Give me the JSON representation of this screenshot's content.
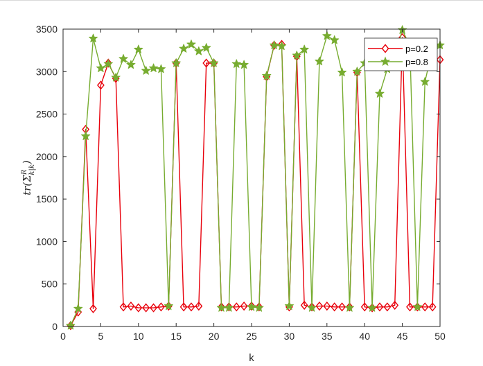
{
  "chart_data": {
    "type": "line",
    "xlabel": "k",
    "ylabel": "tr(Σ^R_{k|k})",
    "ylabel_parts": {
      "main": "tr(Σ",
      "sup": "R",
      "sub": "k|k",
      "close": ")"
    },
    "xlim": [
      0,
      50
    ],
    "ylim": [
      0,
      3500
    ],
    "xticks": [
      0,
      5,
      10,
      15,
      20,
      25,
      30,
      35,
      40,
      45,
      50
    ],
    "yticks": [
      0,
      500,
      1000,
      1500,
      2000,
      2500,
      3000,
      3500
    ],
    "grid": false,
    "legend_position": "top-right",
    "x": [
      1,
      2,
      3,
      4,
      5,
      6,
      7,
      8,
      9,
      10,
      11,
      12,
      13,
      14,
      15,
      16,
      17,
      18,
      19,
      20,
      21,
      22,
      23,
      24,
      25,
      26,
      27,
      28,
      29,
      30,
      31,
      32,
      33,
      34,
      35,
      36,
      37,
      38,
      39,
      40,
      41,
      42,
      43,
      44,
      45,
      46,
      47,
      48,
      49,
      50
    ],
    "series": [
      {
        "name": "p=0.2",
        "color": "#e8000b",
        "marker": "diamond",
        "values": [
          10,
          170,
          2320,
          210,
          2840,
          3100,
          2920,
          230,
          240,
          220,
          220,
          220,
          230,
          240,
          3100,
          230,
          230,
          240,
          3100,
          3100,
          230,
          230,
          230,
          240,
          240,
          230,
          2940,
          3310,
          3320,
          230,
          3180,
          250,
          230,
          240,
          240,
          230,
          230,
          230,
          2990,
          230,
          220,
          230,
          230,
          250,
          3400,
          230,
          230,
          230,
          230,
          3140
        ]
      },
      {
        "name": "p=0.8",
        "color": "#77ac30",
        "marker": "star",
        "values": [
          10,
          210,
          2240,
          3390,
          3040,
          3090,
          2930,
          3150,
          3080,
          3260,
          3010,
          3040,
          3030,
          240,
          3100,
          3270,
          3320,
          3240,
          3280,
          3100,
          220,
          220,
          3090,
          3080,
          230,
          220,
          2950,
          3310,
          3300,
          240,
          3190,
          3260,
          220,
          3120,
          3420,
          3370,
          2990,
          220,
          3000,
          3100,
          220,
          2740,
          3030,
          3180,
          3490,
          3300,
          230,
          2880,
          3270,
          3310
        ]
      }
    ]
  }
}
